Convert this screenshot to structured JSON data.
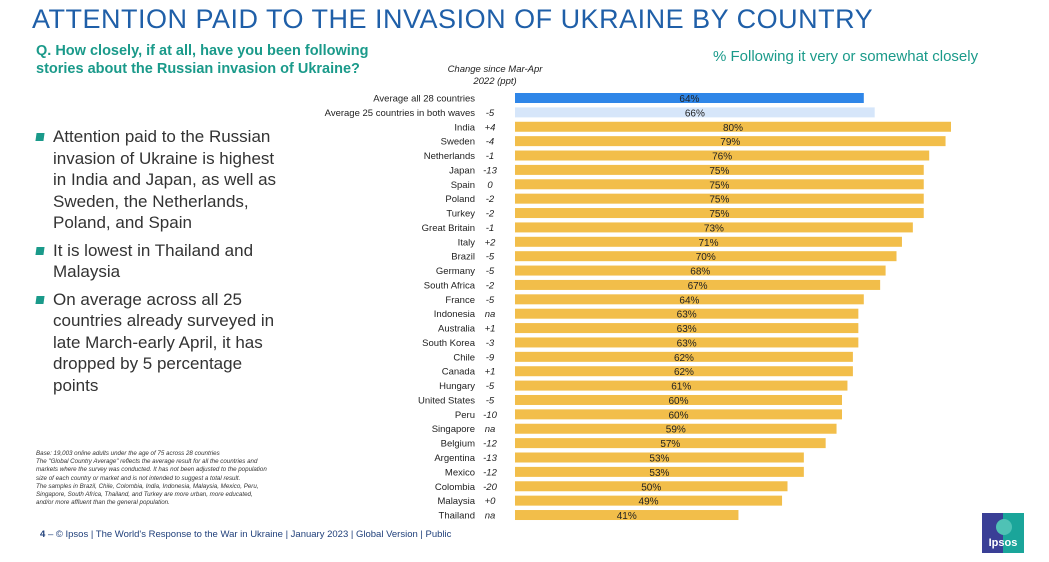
{
  "title": "ATTENTION PAID TO THE INVASION OF UKRAINE BY COUNTRY",
  "question": "Q. How closely, if at all, have you been following stories about the Russian invasion of Ukraine?",
  "bullets": [
    "Attention paid to the Russian invasion of Ukraine is highest in India and Japan, as well as Sweden, the Netherlands, Poland, and Spain",
    "It is lowest in Thailand and Malaysia",
    "On average across all 25 countries already surveyed in late March-early April, it has dropped by 5 percentage points"
  ],
  "base_note": [
    "Base: 19,003 online adults under the age of 75 across 28 countries",
    "The \"Global Country Average\" reflects the average result for all the countries and markets where the survey was conducted. It has not been adjusted to the population size of each country or market and is not intended to suggest a total result.",
    "The samples in Brazil, Chile, Colombia, India, Indonesia, Malaysia, Mexico, Peru, Singapore, South Africa, Thailand, and Turkey are more urban, more educated, and/or more affluent than the general population."
  ],
  "footer": {
    "page": "4",
    "text": "– © Ipsos | The World's Response to the War in Ukraine | January 2023 | Global Version | Public"
  },
  "logo": "Ipsos",
  "chart_data": {
    "type": "bar",
    "orientation": "horizontal",
    "subtitle": "% Following it very or somewhat closely",
    "change_header": "Change since Mar-Apr 2022 (ppt)",
    "categories": [
      "Average all 28 countries",
      "Average 25 countries in both waves",
      "India",
      "Sweden",
      "Netherlands",
      "Japan",
      "Spain",
      "Poland",
      "Turkey",
      "Great Britain",
      "Italy",
      "Brazil",
      "Germany",
      "South Africa",
      "France",
      "Indonesia",
      "Australia",
      "South Korea",
      "Chile",
      "Canada",
      "Hungary",
      "United States",
      "Peru",
      "Singapore",
      "Belgium",
      "Argentina",
      "Mexico",
      "Colombia",
      "Malaysia",
      "Thailand"
    ],
    "values": [
      64,
      66,
      80,
      79,
      76,
      75,
      75,
      75,
      75,
      73,
      71,
      70,
      68,
      67,
      64,
      63,
      63,
      63,
      62,
      62,
      61,
      60,
      60,
      59,
      57,
      53,
      53,
      50,
      49,
      41
    ],
    "change": [
      "",
      "-5",
      "+4",
      "-4",
      "-1",
      "-13",
      "0",
      "-2",
      "-2",
      "-1",
      "+2",
      "-5",
      "-5",
      "-2",
      "-5",
      "na",
      "+1",
      "-3",
      "-9",
      "+1",
      "-5",
      "-5",
      "-10",
      "na",
      "-12",
      "-13",
      "-12",
      "-20",
      "+0",
      "na"
    ],
    "value_format": "%",
    "colors": {
      "average_28": "#2f86e8",
      "average_25": "#d6e6fa",
      "country": "#f2be4a"
    },
    "xlim": [
      0,
      100
    ],
    "grid": false
  }
}
